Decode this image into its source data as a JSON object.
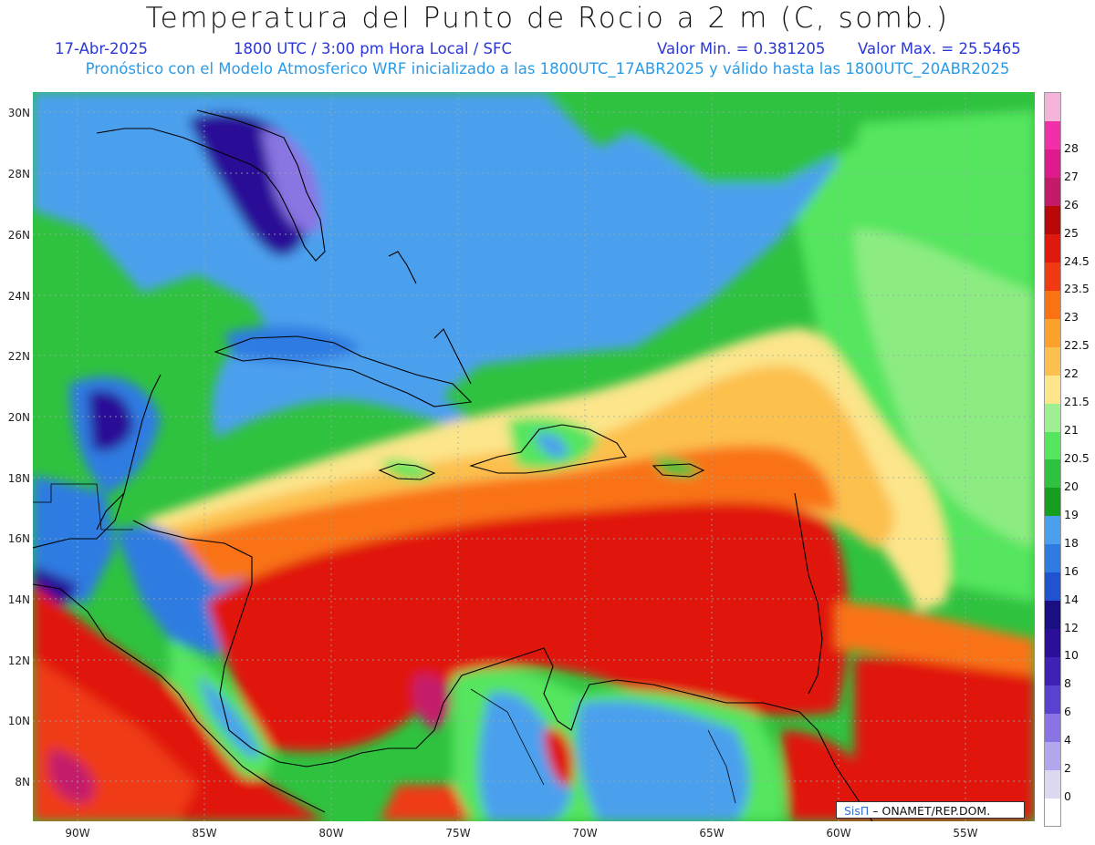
{
  "header": {
    "title": "Temperatura del Punto de Rocio a 2 m (C, somb.)",
    "date": "17-Abr-2025",
    "time": "1800 UTC / 3:00 pm Hora Local / SFC",
    "min": "Valor Min. = 0.381205",
    "max": "Valor Max. = 25.5465",
    "subtitle": "Pronóstico con el Modelo Atmosferico WRF inicializado a las 1800UTC_17ABR2025 y válido hasta las  1800UTC_20ABR2025"
  },
  "map": {
    "lat_labels": [
      "30N",
      "28N",
      "26N",
      "24N",
      "22N",
      "20N",
      "18N",
      "16N",
      "14N",
      "12N",
      "10N",
      "8N"
    ],
    "lon_labels": [
      "90W",
      "85W",
      "80W",
      "75W",
      "70W",
      "65W",
      "60W",
      "55W"
    ],
    "credit_brand": "SisΠ",
    "credit_text": " – ONAMET/REP.DOM."
  },
  "colorbar": {
    "ticks": [
      "0",
      "2",
      "4",
      "6",
      "8",
      "10",
      "12",
      "14",
      "16",
      "18",
      "19",
      "20",
      "20.5",
      "21",
      "21.5",
      "22",
      "22.5",
      "23",
      "23.5",
      "24.5",
      "25",
      "26",
      "27",
      "28"
    ],
    "colors": [
      "#ffffff",
      "#dcd8f2",
      "#b3a6ee",
      "#8a74e3",
      "#5a41cf",
      "#3d22b3",
      "#2b1097",
      "#1a0f82",
      "#1f53cf",
      "#2e7be2",
      "#4ba0ee",
      "#169e1e",
      "#2fc23f",
      "#55e55e",
      "#9cf090",
      "#fce58a",
      "#fcc04e",
      "#fca12c",
      "#f97315",
      "#ef3a13",
      "#e0190e",
      "#b80808",
      "#c41a6a",
      "#de1a8c",
      "#f02fa8",
      "#f6b3d9"
    ]
  }
}
